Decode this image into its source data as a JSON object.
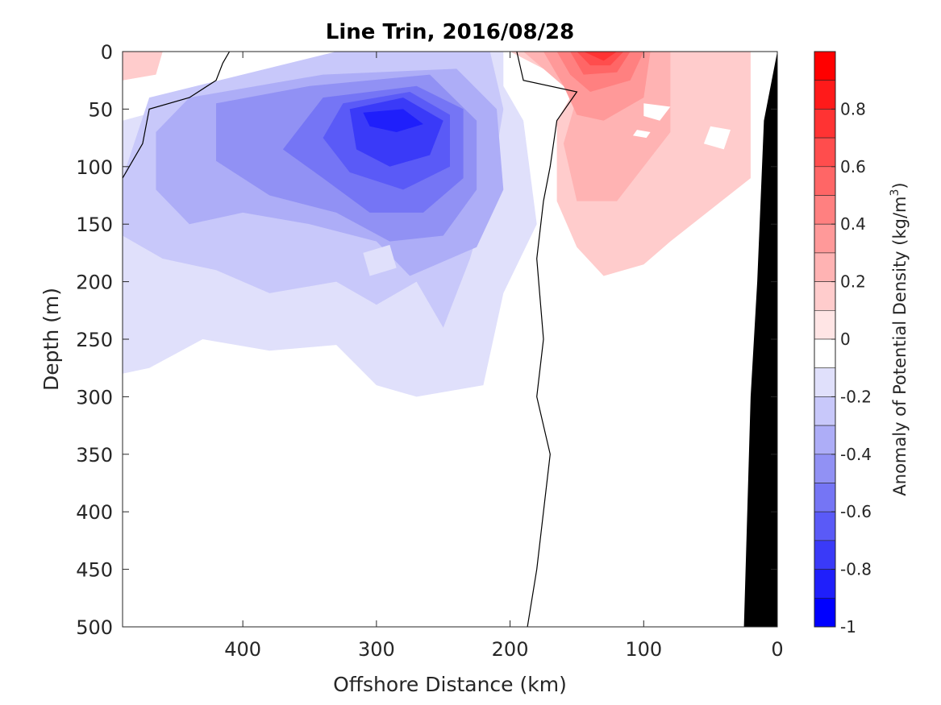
{
  "chart_data": {
    "type": "heatmap",
    "title": "Line Trin, 2016/08/28",
    "xlabel": "Offshore Distance (km)",
    "ylabel": "Depth (m)",
    "colorbar_label_prefix": "Anomaly of Potential Density (kg/m",
    "colorbar_label_sup": "3",
    "colorbar_label_suffix": ")",
    "xlim": [
      490,
      0
    ],
    "ylim": [
      500,
      0
    ],
    "x_ticks": [
      400,
      300,
      200,
      100,
      0
    ],
    "x_tick_labels": [
      "400",
      "300",
      "200",
      "100",
      "0"
    ],
    "y_ticks": [
      0,
      50,
      100,
      150,
      200,
      250,
      300,
      350,
      400,
      450,
      500
    ],
    "y_tick_labels": [
      "0",
      "50",
      "100",
      "150",
      "200",
      "250",
      "300",
      "350",
      "400",
      "450",
      "500"
    ],
    "clim": [
      -1,
      1
    ],
    "colorbar_ticks": [
      0.8,
      0.6,
      0.4,
      0.2,
      0,
      -0.2,
      -0.4,
      -0.6,
      -0.8,
      -1
    ],
    "colorbar_tick_labels": [
      "0.8",
      "0.6",
      "0.4",
      "0.2",
      "0",
      "-0.2",
      "-0.4",
      "-0.6",
      "-0.8",
      "-1"
    ],
    "levels": [
      {
        "lo": 0.9,
        "hi": 1.0,
        "color": "#ff0000"
      },
      {
        "lo": 0.8,
        "hi": 0.9,
        "color": "#ff1a1a"
      },
      {
        "lo": 0.7,
        "hi": 0.8,
        "color": "#ff3333"
      },
      {
        "lo": 0.6,
        "hi": 0.7,
        "color": "#ff4d4d"
      },
      {
        "lo": 0.5,
        "hi": 0.6,
        "color": "#ff6666"
      },
      {
        "lo": 0.4,
        "hi": 0.5,
        "color": "#ff8080"
      },
      {
        "lo": 0.3,
        "hi": 0.4,
        "color": "#ff9999"
      },
      {
        "lo": 0.2,
        "hi": 0.3,
        "color": "#ffb3b3"
      },
      {
        "lo": 0.1,
        "hi": 0.2,
        "color": "#ffcccc"
      },
      {
        "lo": 0.0,
        "hi": 0.1,
        "color": "#ffe5e5"
      },
      {
        "lo": -0.1,
        "hi": 0.0,
        "color": "#ffffff"
      },
      {
        "lo": -0.2,
        "hi": -0.1,
        "color": "#e0e0fb"
      },
      {
        "lo": -0.3,
        "hi": -0.2,
        "color": "#c8c8fa"
      },
      {
        "lo": -0.4,
        "hi": -0.3,
        "color": "#adadf7"
      },
      {
        "lo": -0.5,
        "hi": -0.4,
        "color": "#9191f4"
      },
      {
        "lo": -0.6,
        "hi": -0.5,
        "color": "#7575f5"
      },
      {
        "lo": -0.7,
        "hi": -0.6,
        "color": "#5a5af7"
      },
      {
        "lo": -0.8,
        "hi": -0.7,
        "color": "#3a3af8"
      },
      {
        "lo": -0.9,
        "hi": -0.8,
        "color": "#1f1ffb"
      },
      {
        "lo": -1.0,
        "hi": -0.9,
        "color": "#0000ff"
      }
    ],
    "anomaly_regions": [
      {
        "level": -0.1,
        "points": [
          [
            490,
            60
          ],
          [
            300,
            0
          ],
          [
            205,
            0
          ],
          [
            205,
            30
          ],
          [
            190,
            60
          ],
          [
            180,
            150
          ],
          [
            205,
            210
          ],
          [
            220,
            290
          ],
          [
            270,
            300
          ],
          [
            300,
            290
          ],
          [
            330,
            255
          ],
          [
            380,
            260
          ],
          [
            430,
            250
          ],
          [
            470,
            275
          ],
          [
            490,
            280
          ]
        ]
      },
      {
        "level": -0.2,
        "points": [
          [
            470,
            40
          ],
          [
            330,
            0
          ],
          [
            215,
            0
          ],
          [
            205,
            50
          ],
          [
            215,
            120
          ],
          [
            230,
            180
          ],
          [
            250,
            240
          ],
          [
            270,
            200
          ],
          [
            300,
            220
          ],
          [
            330,
            200
          ],
          [
            380,
            210
          ],
          [
            420,
            190
          ],
          [
            460,
            180
          ],
          [
            490,
            160
          ],
          [
            490,
            110
          ]
        ]
      },
      {
        "level": -0.3,
        "points": [
          [
            440,
            40
          ],
          [
            340,
            20
          ],
          [
            240,
            15
          ],
          [
            210,
            50
          ],
          [
            205,
            120
          ],
          [
            225,
            170
          ],
          [
            275,
            195
          ],
          [
            300,
            165
          ],
          [
            350,
            150
          ],
          [
            400,
            140
          ],
          [
            440,
            150
          ],
          [
            465,
            120
          ],
          [
            465,
            70
          ]
        ]
      },
      {
        "level": -0.4,
        "points": [
          [
            420,
            45
          ],
          [
            350,
            30
          ],
          [
            260,
            20
          ],
          [
            225,
            60
          ],
          [
            225,
            120
          ],
          [
            250,
            160
          ],
          [
            290,
            165
          ],
          [
            330,
            140
          ],
          [
            380,
            125
          ],
          [
            420,
            95
          ]
        ]
      },
      {
        "level": -0.5,
        "points": [
          [
            340,
            40
          ],
          [
            270,
            30
          ],
          [
            235,
            50
          ],
          [
            235,
            110
          ],
          [
            265,
            140
          ],
          [
            305,
            140
          ],
          [
            340,
            110
          ],
          [
            370,
            85
          ],
          [
            350,
            55
          ]
        ]
      },
      {
        "level": -0.6,
        "points": [
          [
            325,
            45
          ],
          [
            275,
            35
          ],
          [
            245,
            55
          ],
          [
            245,
            100
          ],
          [
            280,
            120
          ],
          [
            320,
            105
          ],
          [
            340,
            75
          ]
        ]
      },
      {
        "level": -0.7,
        "points": [
          [
            320,
            50
          ],
          [
            280,
            40
          ],
          [
            250,
            60
          ],
          [
            260,
            90
          ],
          [
            290,
            100
          ],
          [
            315,
            85
          ]
        ]
      },
      {
        "level": -0.8,
        "points": [
          [
            310,
            53
          ],
          [
            280,
            50
          ],
          [
            265,
            63
          ],
          [
            285,
            70
          ],
          [
            305,
            65
          ]
        ]
      },
      {
        "level": 0.1,
        "points": [
          [
            200,
            0
          ],
          [
            20,
            0
          ],
          [
            20,
            110
          ],
          [
            80,
            165
          ],
          [
            100,
            185
          ],
          [
            130,
            195
          ],
          [
            150,
            170
          ],
          [
            165,
            130
          ],
          [
            165,
            60
          ],
          [
            150,
            30
          ]
        ]
      },
      {
        "level": 0.2,
        "points": [
          [
            190,
            0
          ],
          [
            80,
            0
          ],
          [
            80,
            70
          ],
          [
            120,
            130
          ],
          [
            150,
            130
          ],
          [
            160,
            80
          ],
          [
            150,
            40
          ]
        ]
      },
      {
        "level": 0.3,
        "points": [
          [
            175,
            0
          ],
          [
            95,
            0
          ],
          [
            100,
            40
          ],
          [
            130,
            60
          ],
          [
            150,
            55
          ],
          [
            160,
            30
          ]
        ]
      },
      {
        "level": 0.4,
        "points": [
          [
            165,
            0
          ],
          [
            100,
            0
          ],
          [
            110,
            25
          ],
          [
            140,
            35
          ],
          [
            155,
            20
          ]
        ]
      },
      {
        "level": 0.5,
        "points": [
          [
            155,
            0
          ],
          [
            110,
            0
          ],
          [
            120,
            18
          ],
          [
            145,
            20
          ]
        ]
      },
      {
        "level": 0.6,
        "points": [
          [
            150,
            0
          ],
          [
            115,
            0
          ],
          [
            125,
            12
          ],
          [
            140,
            12
          ]
        ]
      },
      {
        "level": 0.7,
        "points": [
          [
            145,
            0
          ],
          [
            120,
            0
          ],
          [
            130,
            8
          ]
        ]
      },
      {
        "level": 0.1,
        "points": [
          [
            490,
            0
          ],
          [
            460,
            0
          ],
          [
            465,
            20
          ],
          [
            490,
            25
          ]
        ]
      },
      {
        "level": -0.1,
        "points": [
          [
            310,
            175
          ],
          [
            290,
            168
          ],
          [
            285,
            188
          ],
          [
            305,
            195
          ]
        ]
      }
    ],
    "white_patches": [
      [
        [
          100,
          45
        ],
        [
          80,
          48
        ],
        [
          88,
          60
        ],
        [
          100,
          56
        ]
      ],
      [
        [
          50,
          65
        ],
        [
          35,
          68
        ],
        [
          40,
          85
        ],
        [
          55,
          80
        ]
      ],
      [
        [
          105,
          68
        ],
        [
          95,
          70
        ],
        [
          98,
          75
        ],
        [
          108,
          73
        ]
      ]
    ],
    "zero_contour": [
      [
        195,
        0
      ],
      [
        190,
        25
      ],
      [
        150,
        35
      ],
      [
        165,
        60
      ],
      [
        170,
        100
      ],
      [
        175,
        130
      ],
      [
        180,
        180
      ],
      [
        175,
        250
      ],
      [
        180,
        300
      ],
      [
        170,
        350
      ],
      [
        175,
        400
      ],
      [
        180,
        450
      ],
      [
        187,
        500
      ]
    ],
    "left_contour": [
      [
        490,
        110
      ],
      [
        475,
        80
      ],
      [
        470,
        50
      ],
      [
        440,
        40
      ],
      [
        420,
        25
      ],
      [
        415,
        10
      ],
      [
        410,
        0
      ]
    ],
    "bathymetry": [
      [
        25,
        500
      ],
      [
        0,
        500
      ],
      [
        0,
        0
      ],
      [
        10,
        60
      ],
      [
        15,
        200
      ],
      [
        20,
        300
      ]
    ]
  }
}
